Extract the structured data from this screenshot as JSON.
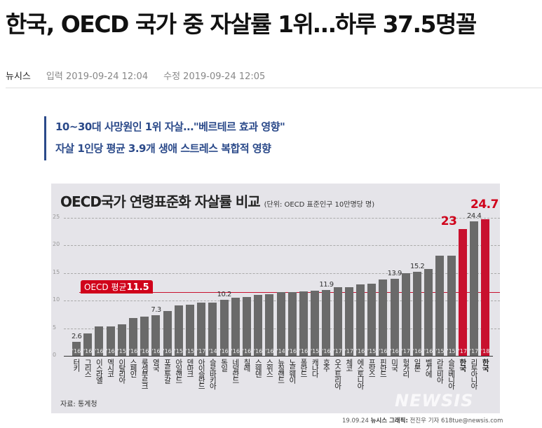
{
  "article": {
    "headline": "한국, OECD 국가 중 자살률 1위…하루 37.5명꼴",
    "press": "뉴시스",
    "input_label": "입력",
    "input_time": "2019-09-24 12:04",
    "modified_label": "수정",
    "modified_time": "2019-09-24 12:05",
    "subheads": [
      "10~30대 사망원인 1위 자살…\"베르테르 효과 영향\"",
      "자살 1인당 평균 3.9개 생애 스트레스 복합적 영향"
    ]
  },
  "colors": {
    "accent": "#c8102e",
    "bar": "#6a6a6a",
    "subhead": "#2b4a8a",
    "chart_bg": "#e5e4e9"
  },
  "chart_data": {
    "type": "bar",
    "title": "OECD국가 연령표준화 자살률 비교",
    "unit_note": "(단위: OECD 표준인구 10만명당 명)",
    "ylim": [
      0,
      25
    ],
    "yticks": [
      "0",
      "5",
      "10",
      "15",
      "20",
      "25"
    ],
    "grid": true,
    "reference": {
      "label": "OECD 평균",
      "value": 11.5,
      "value_label": "11.5"
    },
    "categories": [
      "터키",
      "그리스",
      "이스라엘",
      "멕시코",
      "이탈리아",
      "스페인",
      "룩셈부르크",
      "영국",
      "포르투갈",
      "아일랜드",
      "덴마크",
      "아이슬란드",
      "슬로바키아",
      "독일",
      "네덜란드",
      "칠레",
      "스웨덴",
      "스위스",
      "뉴질랜드",
      "노르웨이",
      "폴란드",
      "캐나다",
      "호주",
      "오스트리아",
      "체코",
      "에스토니아",
      "프랑스",
      "핀란드",
      "미국",
      "헝가리",
      "일본",
      "벨기에",
      "라트비아",
      "슬로베니아",
      "한국",
      "리투아니아",
      "한국"
    ],
    "years": [
      "'16",
      "'16",
      "'16",
      "'16",
      "'15",
      "'16",
      "'16",
      "'16",
      "'16",
      "'15",
      "'15",
      "'17",
      "'14",
      "'16",
      "'16",
      "'16",
      "'16",
      "'16",
      "'14",
      "'16",
      "'16",
      "'15",
      "'16",
      "'17",
      "'17",
      "'16",
      "'15",
      "'16",
      "'16",
      "'17",
      "'16",
      "'16",
      "'15",
      "'15",
      "'17",
      "'17",
      "'18"
    ],
    "values": [
      2.6,
      4.0,
      5.3,
      5.3,
      5.7,
      6.8,
      7.1,
      7.3,
      8.1,
      9.2,
      9.3,
      9.6,
      9.7,
      10.2,
      10.5,
      10.6,
      11.1,
      11.2,
      11.6,
      11.6,
      11.7,
      11.8,
      11.9,
      12.4,
      12.5,
      12.9,
      13.1,
      13.8,
      13.9,
      15.0,
      15.2,
      15.7,
      18.1,
      18.1,
      23.0,
      24.4,
      24.7
    ],
    "highlighted": [
      34,
      36
    ],
    "data_labels": {
      "0": "2.6",
      "7": "7.3",
      "13": "10.2",
      "22": "11.9",
      "28": "13.9",
      "30": "15.2",
      "34": "23",
      "35": "24.4",
      "36": "24.7"
    },
    "big_labels": [
      34,
      36
    ],
    "source": "자료: 통계청",
    "watermark": "NEWSIS",
    "credit_date": "19.09.24",
    "credit_org": "뉴시스 그래픽:",
    "credit_author": "전진우 기자 618tue@newsis.com"
  }
}
